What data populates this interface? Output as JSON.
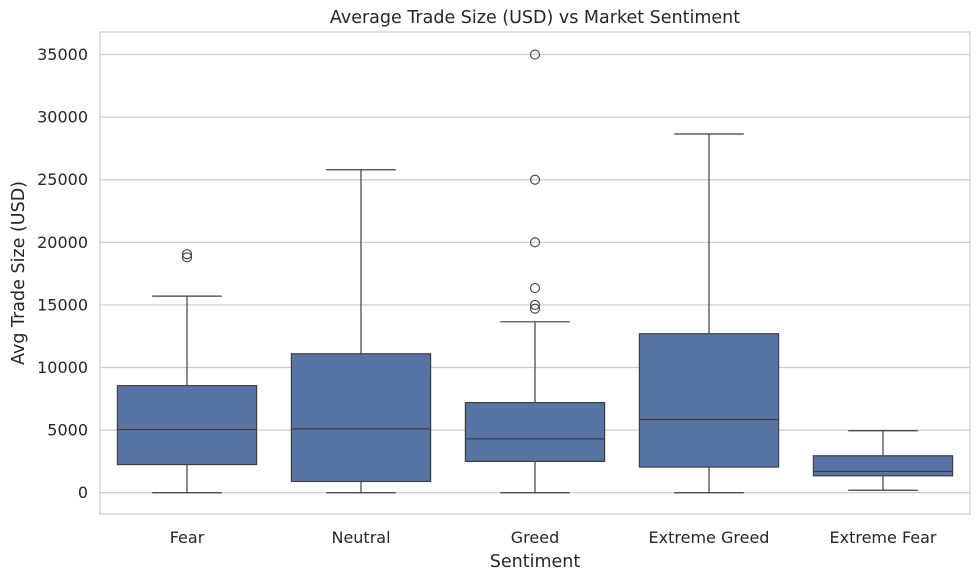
{
  "chart_data": {
    "type": "box",
    "title": "Average Trade Size (USD) vs Market Sentiment",
    "xlabel": "Sentiment",
    "ylabel": "Avg Trade Size (USD)",
    "ylim": [
      -1700,
      36800
    ],
    "yticks": [
      0,
      5000,
      10000,
      15000,
      20000,
      25000,
      30000,
      35000
    ],
    "grid": true,
    "categories": [
      "Fear",
      "Neutral",
      "Greed",
      "Extreme Greed",
      "Extreme Fear"
    ],
    "boxes": [
      {
        "category": "Fear",
        "whisker_low": 0,
        "q1": 2250,
        "median": 5050,
        "q3": 8550,
        "whisker_high": 15700,
        "outliers": [
          18800,
          19050
        ]
      },
      {
        "category": "Neutral",
        "whisker_low": 0,
        "q1": 900,
        "median": 5100,
        "q3": 11100,
        "whisker_high": 25800,
        "outliers": []
      },
      {
        "category": "Greed",
        "whisker_low": 0,
        "q1": 2500,
        "median": 4300,
        "q3": 7200,
        "whisker_high": 13650,
        "outliers": [
          14700,
          15000,
          16350,
          20000,
          25000,
          35000
        ]
      },
      {
        "category": "Extreme Greed",
        "whisker_low": 0,
        "q1": 2050,
        "median": 5850,
        "q3": 12700,
        "whisker_high": 28650,
        "outliers": []
      },
      {
        "category": "Extreme Fear",
        "whisker_low": 200,
        "q1": 1350,
        "median": 1700,
        "q3": 2950,
        "whisker_high": 4950,
        "outliers": []
      }
    ],
    "colors": {
      "box_fill": "#5874a5",
      "line": "#3f3f3f",
      "grid": "#cccccc",
      "axes_edge": "#cccccc",
      "text": "#262626"
    }
  }
}
